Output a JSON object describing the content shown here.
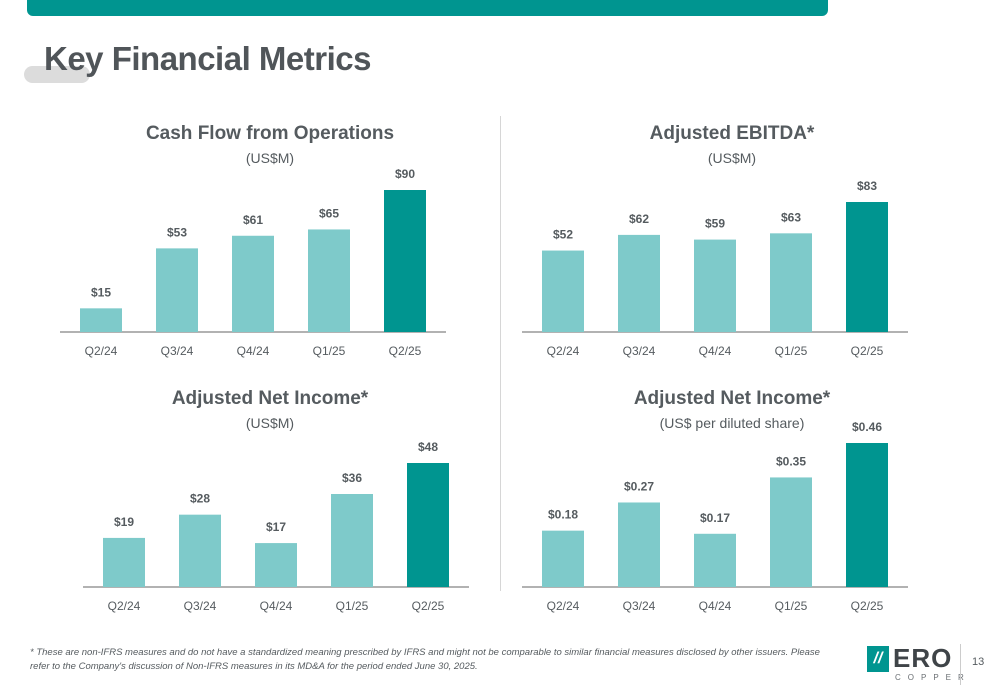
{
  "page": {
    "title": "Key Financial Metrics",
    "footnote": "* These are non-IFRS measures and do not have a standardized meaning prescribed by IFRS and might not be comparable to similar financial measures disclosed by other issuers. Please refer to the Company's discussion of Non-IFRS measures in its MD&A for the period ended June 30, 2025.",
    "page_number": "13",
    "logo_word": "ERO",
    "logo_sub": "COPPER",
    "logo_mark": "//"
  },
  "colors": {
    "bar_light": "#7ecaca",
    "bar_highlight": "#009590",
    "axis": "#666666",
    "brand": "#009590"
  },
  "chart_data": [
    {
      "type": "bar",
      "title": "Cash Flow from Operations",
      "subtitle": "(US$M)",
      "categories": [
        "Q2/24",
        "Q3/24",
        "Q4/24",
        "Q1/25",
        "Q2/25"
      ],
      "values": [
        15,
        53,
        61,
        65,
        90
      ],
      "labels": [
        "$15",
        "$53",
        "$61",
        "$65",
        "$90"
      ],
      "highlight_index": 4,
      "ylim": [
        0,
        90
      ]
    },
    {
      "type": "bar",
      "title": "Adjusted EBITDA*",
      "subtitle": "(US$M)",
      "categories": [
        "Q2/24",
        "Q3/24",
        "Q4/24",
        "Q1/25",
        "Q2/25"
      ],
      "values": [
        52,
        62,
        59,
        63,
        83
      ],
      "labels": [
        "$52",
        "$62",
        "$59",
        "$63",
        "$83"
      ],
      "highlight_index": 4,
      "ylim": [
        0,
        83
      ]
    },
    {
      "type": "bar",
      "title": "Adjusted Net Income*",
      "subtitle": "(US$M)",
      "categories": [
        "Q2/24",
        "Q3/24",
        "Q4/24",
        "Q1/25",
        "Q2/25"
      ],
      "values": [
        19,
        28,
        17,
        36,
        48
      ],
      "labels": [
        "$19",
        "$28",
        "$17",
        "$36",
        "$48"
      ],
      "highlight_index": 4,
      "ylim": [
        0,
        48
      ]
    },
    {
      "type": "bar",
      "title": "Adjusted Net Income*",
      "subtitle": "(US$ per diluted share)",
      "categories": [
        "Q2/24",
        "Q3/24",
        "Q4/24",
        "Q1/25",
        "Q2/25"
      ],
      "values": [
        0.18,
        0.27,
        0.17,
        0.35,
        0.46
      ],
      "labels": [
        "$0.18",
        "$0.27",
        "$0.17",
        "$0.35",
        "$0.46"
      ],
      "highlight_index": 4,
      "ylim": [
        0,
        0.46
      ]
    }
  ]
}
